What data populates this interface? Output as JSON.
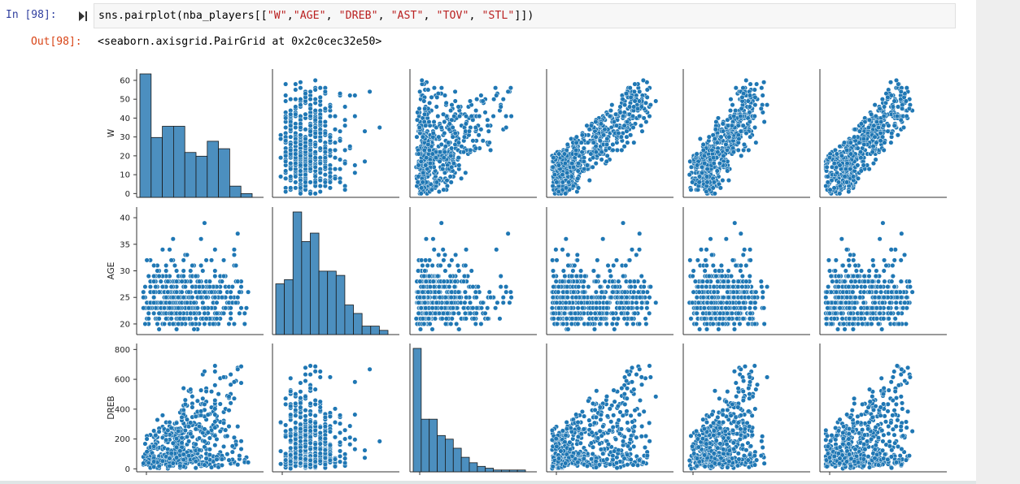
{
  "cell": {
    "in_prompt": "In [98]:",
    "out_prompt": "Out[98]:",
    "code_prefix": "sns.pairplot(nba_players[[",
    "code_strings": [
      "\"W\"",
      "\"AGE\"",
      "\"DREB\"",
      "\"AST\"",
      "\"TOV\"",
      "\"STL\""
    ],
    "code_suffix": "]])",
    "output_text": "<seaborn.axisgrid.PairGrid at 0x2c0cec32e50>"
  },
  "colors": {
    "point": "#1f77b4",
    "hist": "#4c8fbf",
    "code_string": "#ba2121",
    "out_prompt": "#d84315",
    "in_prompt": "#303f9f"
  },
  "chart_data": {
    "type": "scatter",
    "kind": "pairplot",
    "variables": [
      "W",
      "AGE",
      "DREB",
      "AST",
      "TOV",
      "STL"
    ],
    "visible_rows": [
      "W",
      "AGE",
      "DREB"
    ],
    "row_labels": [
      "W",
      "AGE",
      "DREB"
    ],
    "y_ticks": {
      "W": [
        0,
        10,
        20,
        30,
        40,
        50,
        60
      ],
      "AGE": [
        20,
        25,
        30,
        35,
        40
      ],
      "DREB": [
        0,
        200,
        400,
        600,
        800
      ]
    },
    "ranges": {
      "W": [
        -2,
        66
      ],
      "AGE": [
        18,
        42
      ],
      "DREB": [
        -20,
        840
      ],
      "AST": [
        0,
        10
      ],
      "TOV": [
        0,
        5
      ],
      "STL": [
        0,
        2.2
      ]
    },
    "histograms": {
      "W": [
        33,
        16,
        19,
        19,
        12,
        11,
        15,
        13,
        3,
        1
      ],
      "AGE": [
        12,
        13,
        29,
        22,
        24,
        15,
        15,
        14,
        7,
        5,
        2,
        2,
        1
      ],
      "DREB": [
        68,
        29,
        29,
        20,
        18,
        13,
        8,
        5,
        3,
        2,
        1,
        1,
        1,
        1
      ]
    },
    "grid": false,
    "legend": "none"
  }
}
